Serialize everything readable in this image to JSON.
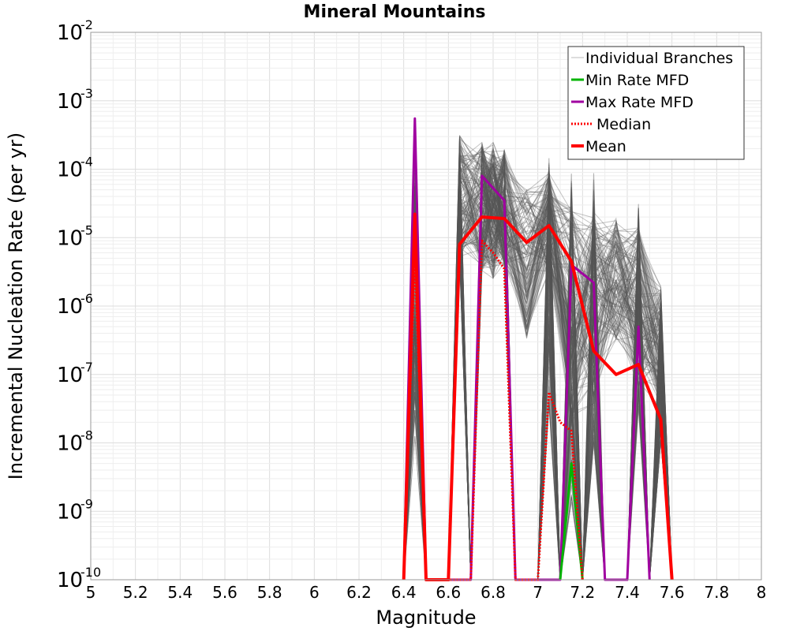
{
  "chart_data": {
    "type": "line",
    "title": "Mineral Mountains",
    "xlabel": "Magnitude",
    "ylabel": "Incremental Nucleation Rate (per yr)",
    "xlim": [
      5,
      8
    ],
    "ylim": [
      1e-10,
      0.01
    ],
    "yscale": "log",
    "grid": true,
    "legend_position": "top-right",
    "x_ticks": [
      "5",
      "5.2",
      "5.4",
      "5.6",
      "5.8",
      "6",
      "6.2",
      "6.4",
      "6.6",
      "6.8",
      "7",
      "7.2",
      "7.4",
      "7.6",
      "7.8",
      "8"
    ],
    "y_ticks": [
      {
        "value": 1e-10,
        "base": "10",
        "exp": "-10"
      },
      {
        "value": 1e-09,
        "base": "10",
        "exp": "-9"
      },
      {
        "value": 1e-08,
        "base": "10",
        "exp": "-8"
      },
      {
        "value": 1e-07,
        "base": "10",
        "exp": "-7"
      },
      {
        "value": 1e-06,
        "base": "10",
        "exp": "-6"
      },
      {
        "value": 1e-05,
        "base": "10",
        "exp": "-5"
      },
      {
        "value": 0.0001,
        "base": "10",
        "exp": "-4"
      },
      {
        "value": 0.001,
        "base": "10",
        "exp": "-3"
      },
      {
        "value": 0.01,
        "base": "10",
        "exp": "-2"
      }
    ],
    "series": [
      {
        "name": "Min Rate MFD",
        "color": "#00b400",
        "style": "solid",
        "points": [
          [
            7.1,
            1e-10
          ],
          [
            7.15,
            5e-09
          ],
          [
            7.2,
            1e-10
          ]
        ]
      },
      {
        "name": "Max Rate MFD",
        "color": "#a000a0",
        "style": "solid",
        "points": [
          [
            6.4,
            1e-10
          ],
          [
            6.45,
            0.00055
          ],
          [
            6.5,
            1e-10
          ],
          [
            6.7,
            1e-10
          ],
          [
            6.75,
            8e-05
          ],
          [
            6.85,
            3.5e-05
          ],
          [
            6.9,
            1e-10
          ],
          [
            7.1,
            1e-10
          ],
          [
            7.15,
            4e-06
          ],
          [
            7.25,
            2.2e-06
          ],
          [
            7.3,
            1e-10
          ],
          [
            7.4,
            1e-10
          ],
          [
            7.45,
            5e-07
          ],
          [
            7.5,
            1e-10
          ]
        ]
      },
      {
        "name": "Median",
        "color": "#ff0000",
        "style": "dotted",
        "points": [
          [
            6.4,
            1e-10
          ],
          [
            6.45,
            6e-06
          ],
          [
            6.5,
            1e-10
          ],
          [
            6.7,
            1e-10
          ],
          [
            6.75,
            9e-06
          ],
          [
            6.8,
            6e-06
          ],
          [
            6.85,
            3.5e-06
          ],
          [
            6.9,
            1e-10
          ],
          [
            7.0,
            1e-10
          ],
          [
            7.05,
            5.5e-08
          ],
          [
            7.1,
            2e-08
          ],
          [
            7.15,
            1.5e-08
          ],
          [
            7.2,
            1e-10
          ]
        ]
      },
      {
        "name": "Mean",
        "color": "#ff0000",
        "style": "solid",
        "points": [
          [
            6.4,
            1e-10
          ],
          [
            6.45,
            2.2e-05
          ],
          [
            6.5,
            1e-10
          ],
          [
            6.6,
            1e-10
          ],
          [
            6.65,
            8e-06
          ],
          [
            6.75,
            2e-05
          ],
          [
            6.85,
            1.9e-05
          ],
          [
            6.95,
            8.5e-06
          ],
          [
            7.05,
            1.5e-05
          ],
          [
            7.15,
            4.5e-06
          ],
          [
            7.25,
            2.2e-07
          ],
          [
            7.35,
            1e-07
          ],
          [
            7.45,
            1.4e-07
          ],
          [
            7.55,
            2.2e-08
          ],
          [
            7.6,
            1e-10
          ]
        ]
      }
    ],
    "branches": {
      "name": "Individual Branches",
      "color": "#555555"
    }
  }
}
